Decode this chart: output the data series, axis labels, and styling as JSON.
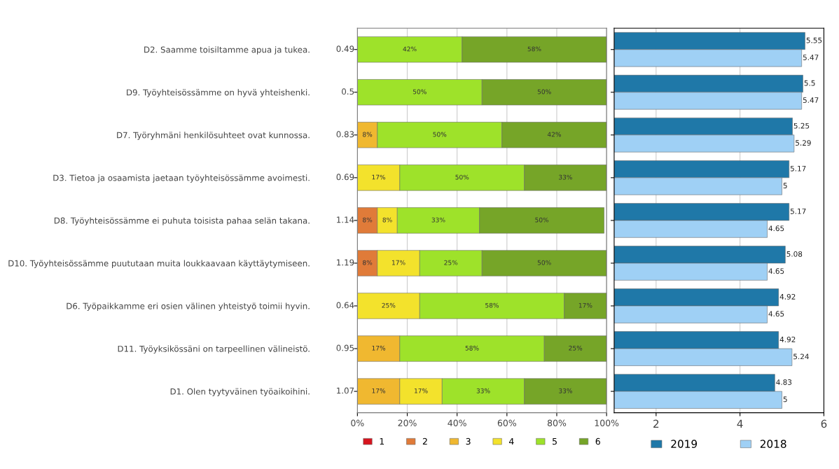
{
  "chart_data": [
    {
      "type": "bar",
      "orientation": "horizontal",
      "stacked": true,
      "categories": [
        "D2. Saamme toisiltamme apua ja tukea.",
        "D9. Työyhteisössämme on hyvä yhteishenki.",
        "D7. Työryhmäni henkilösuhteet ovat kunnossa.",
        "D3. Tietoa ja osaamista jaetaan työyhteisössämme avoimesti.",
        "D8. Työyhteisössämme ei puhuta toisista pahaa selän takana.",
        "D10. Työyhteisössämme puututaan muita loukkaavaan käyttäytymiseen.",
        "D6. Työpaikkamme eri osien välinen yhteistyö toimii hyvin.",
        "D11. Työyksikössäni on tarpeellinen välineistö.",
        "D1. Olen tyytyväinen työaikoihini."
      ],
      "annotations": [
        "0.49",
        "0.5",
        "0.83",
        "0.69",
        "1.14",
        "1.19",
        "0.64",
        "0.95",
        "1.07"
      ],
      "series": [
        {
          "name": "1",
          "color": "#d7141e",
          "values": [
            null,
            null,
            null,
            null,
            null,
            null,
            null,
            null,
            null
          ],
          "value_labels": [
            null,
            null,
            null,
            null,
            null,
            null,
            null,
            null,
            null
          ]
        },
        {
          "name": "2",
          "color": "#e07b39",
          "values": [
            null,
            null,
            null,
            null,
            8,
            8,
            null,
            null,
            null
          ],
          "value_labels": [
            null,
            null,
            null,
            null,
            "8%",
            "8%",
            null,
            null,
            null
          ]
        },
        {
          "name": "3",
          "color": "#f0b830",
          "values": [
            null,
            null,
            8,
            null,
            null,
            null,
            null,
            17,
            17
          ],
          "value_labels": [
            null,
            null,
            "8%",
            null,
            null,
            null,
            null,
            "17%",
            "17%"
          ]
        },
        {
          "name": "4",
          "color": "#f3e22c",
          "values": [
            null,
            null,
            null,
            17,
            8,
            17,
            25,
            null,
            17
          ],
          "value_labels": [
            null,
            null,
            null,
            "17%",
            "8%",
            "17%",
            "25%",
            null,
            "17%"
          ]
        },
        {
          "name": "5",
          "color": "#9ee22a",
          "values": [
            42,
            50,
            50,
            50,
            33,
            25,
            58,
            58,
            33
          ],
          "value_labels": [
            "42%",
            "50%",
            "50%",
            "50%",
            "33%",
            "25%",
            "58%",
            "58%",
            "33%"
          ]
        },
        {
          "name": "6",
          "color": "#76a528",
          "values": [
            58,
            50,
            42,
            33,
            50,
            50,
            17,
            25,
            33
          ],
          "value_labels": [
            "58%",
            "50%",
            "42%",
            "33%",
            "50%",
            "50%",
            "17%",
            "25%",
            "33%"
          ]
        }
      ],
      "xlim": [
        0,
        100
      ],
      "xticks": [
        {
          "value": 0,
          "label": "0%"
        },
        {
          "value": 20,
          "label": "20%"
        },
        {
          "value": 40,
          "label": "40%"
        },
        {
          "value": 60,
          "label": "60%"
        },
        {
          "value": 80,
          "label": "80%"
        },
        {
          "value": 100,
          "label": "100%"
        }
      ],
      "grid": "x",
      "legend": "bottom"
    },
    {
      "type": "bar",
      "orientation": "horizontal",
      "categories": [
        null,
        null,
        null,
        null,
        null,
        null,
        null,
        null,
        null
      ],
      "series": [
        {
          "name": "2019",
          "color": "#1f78a8",
          "values": [
            5.55,
            5.5,
            5.25,
            5.17,
            5.17,
            5.08,
            4.92,
            4.92,
            4.83
          ]
        },
        {
          "name": "2018",
          "color": "#9fd0f5",
          "values": [
            5.47,
            5.47,
            5.29,
            5,
            4.65,
            4.65,
            4.65,
            5.24,
            5
          ]
        }
      ],
      "xlim": [
        1,
        6
      ],
      "xticks": [
        2,
        4,
        6
      ],
      "tick_labels": "x",
      "data_labels": true,
      "grid": "x",
      "legend": "bottom"
    }
  ]
}
